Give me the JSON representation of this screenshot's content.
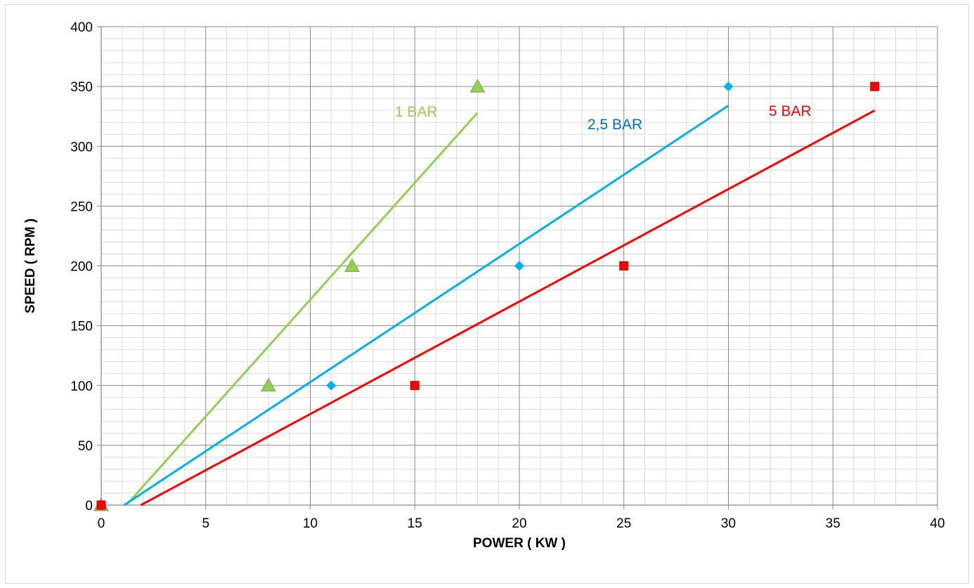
{
  "chart_data": {
    "type": "scatter",
    "title": "",
    "xlabel": "POWER ( KW )",
    "ylabel": "SPEED ( RPM )",
    "xlim": [
      0,
      40
    ],
    "ylim": [
      0,
      400
    ],
    "x_ticks": [
      "0",
      "5",
      "10",
      "15",
      "20",
      "25",
      "30",
      "35",
      "40"
    ],
    "y_ticks": [
      "0",
      "50",
      "100",
      "150",
      "200",
      "250",
      "300",
      "350",
      "400"
    ],
    "grid": true,
    "legend": "none",
    "series": [
      {
        "name": "1 BAR",
        "color": "#92d050",
        "marker": "triangle",
        "points": [
          [
            0,
            0
          ],
          [
            8,
            100
          ],
          [
            12,
            200
          ],
          [
            18,
            350
          ]
        ],
        "trendline": [
          [
            1.2,
            0
          ],
          [
            18,
            328
          ]
        ]
      },
      {
        "name": "2,5 BAR",
        "color": "#00b0f0",
        "label_color": "#0070c0",
        "marker": "diamond",
        "points": [
          [
            0,
            0
          ],
          [
            11,
            100
          ],
          [
            20,
            200
          ],
          [
            30,
            350
          ]
        ],
        "trendline": [
          [
            1.1,
            0
          ],
          [
            30,
            334
          ]
        ]
      },
      {
        "name": "5 BAR",
        "color": "#ff0000",
        "marker": "square",
        "points": [
          [
            0,
            0
          ],
          [
            15,
            100
          ],
          [
            25,
            200
          ],
          [
            37,
            350
          ]
        ],
        "trendline": [
          [
            1.9,
            0
          ],
          [
            37,
            330
          ]
        ]
      }
    ]
  }
}
